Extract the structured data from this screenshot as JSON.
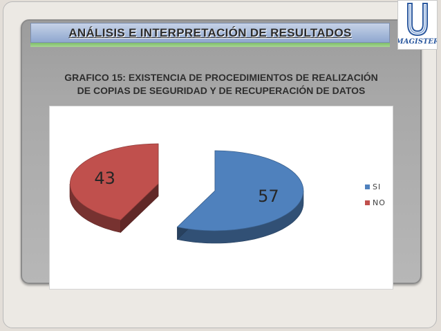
{
  "slide": {
    "title": "ANÁLISIS  E  INTERPRETACIÓN  DE RESULTADOS",
    "chart_title_line1": "GRAFICO 15: EXISTENCIA DE PROCEDIMIENTOS DE REALIZACIÓN",
    "chart_title_line2": "DE COPIAS DE SEGURIDAD Y DE RECUPERACIÓN DE DATOS"
  },
  "logo": {
    "text": "MAGISTER",
    "icon": "university-u-logo-icon"
  },
  "chart_data": {
    "type": "pie",
    "style": "3d-exploded",
    "title": "GRAFICO 15: EXISTENCIA DE PROCEDIMIENTOS DE REALIZACIÓN DE COPIAS DE SEGURIDAD Y DE RECUPERACIÓN DE DATOS",
    "categories": [
      "SI",
      "NO"
    ],
    "values": [
      57,
      43
    ],
    "data_labels": [
      "57",
      "43"
    ],
    "colors": [
      "#4f81bd",
      "#c0504d"
    ],
    "legend": {
      "position": "right",
      "entries": [
        "SI",
        "NO"
      ]
    }
  }
}
